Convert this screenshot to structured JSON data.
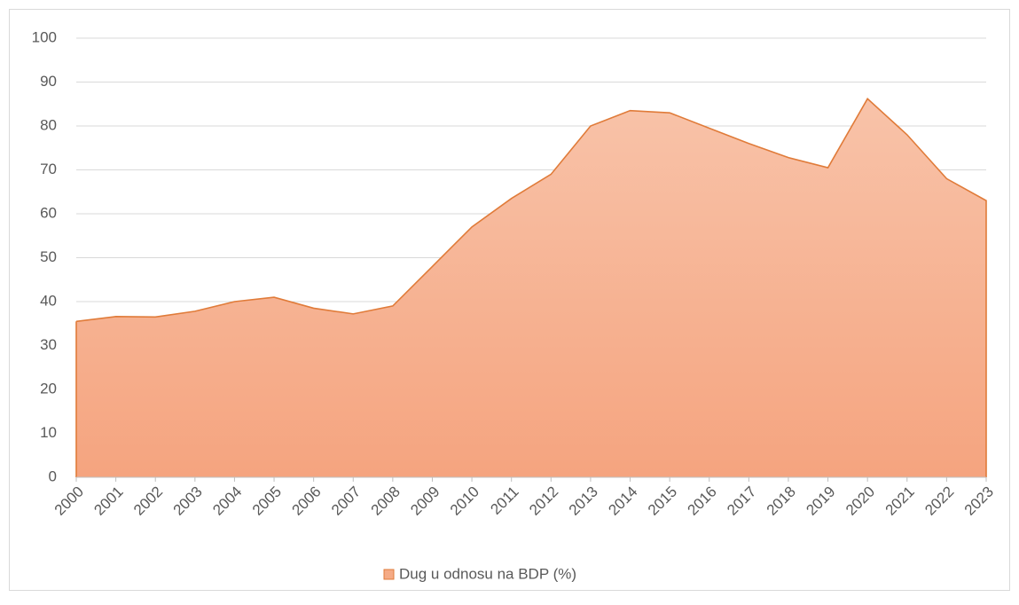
{
  "chart_data": {
    "type": "area",
    "categories": [
      "2000",
      "2001",
      "2002",
      "2003",
      "2004",
      "2005",
      "2006",
      "2007",
      "2008",
      "2009",
      "2010",
      "2011",
      "2012",
      "2013",
      "2014",
      "2015",
      "2016",
      "2017",
      "2018",
      "2019",
      "2020",
      "2021",
      "2022",
      "2023"
    ],
    "series": [
      {
        "name": "Dug u odnosu na BDP (%)",
        "color": "#e07b39",
        "values": [
          35.5,
          36.6,
          36.5,
          37.8,
          40.0,
          41.0,
          38.5,
          37.2,
          39.0,
          48.0,
          57.0,
          63.5,
          69.0,
          80.0,
          83.5,
          83.0,
          79.5,
          76.0,
          72.8,
          70.5,
          86.2,
          78.0,
          68.0,
          63.0
        ]
      }
    ],
    "ylim": [
      0,
      100
    ],
    "yticks": [
      0,
      10,
      20,
      30,
      40,
      50,
      60,
      70,
      80,
      90,
      100
    ],
    "grid": true,
    "legend": "bottom"
  }
}
